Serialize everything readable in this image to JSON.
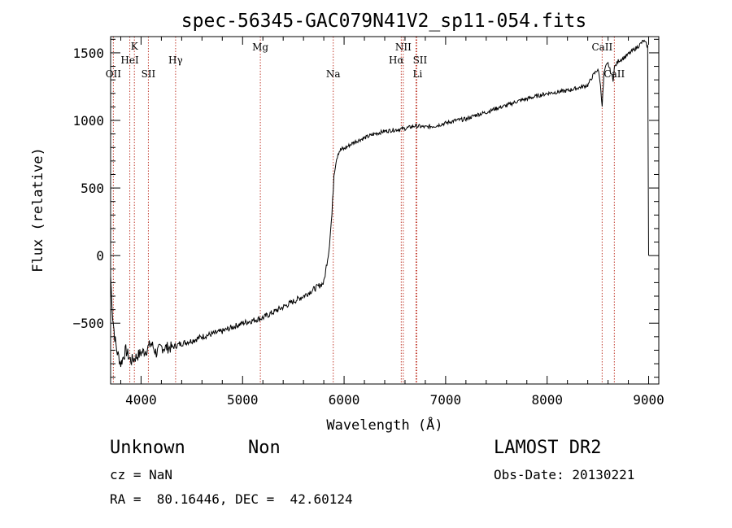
{
  "chart_data": {
    "type": "line",
    "title": "spec-56345-GAC079N41V2_sp11-054.fits",
    "xlabel": "Wavelength (Å)",
    "ylabel": "Flux (relative)",
    "xlim": [
      3700,
      9100
    ],
    "ylim": [
      -950,
      1620
    ],
    "x_ticks": [
      4000,
      5000,
      6000,
      7000,
      8000,
      9000
    ],
    "y_ticks": [
      -500,
      0,
      500,
      1000,
      1500
    ],
    "grid": false,
    "series": [
      {
        "x": [
          3700,
          3720,
          3740,
          3760,
          3780,
          3800,
          3850,
          3900,
          3950,
          4000,
          4050,
          4100,
          4150,
          4200,
          4300,
          4400,
          4500,
          4600,
          4700,
          4800,
          4900,
          5000,
          5100,
          5200,
          5300,
          5400,
          5500,
          5600,
          5700,
          5800,
          5850,
          5880,
          5900,
          5920,
          5940,
          5960,
          6000,
          6100,
          6200,
          6300,
          6400,
          6500,
          6600,
          6700,
          6800,
          6900,
          7000,
          7100,
          7200,
          7300,
          7400,
          7500,
          7600,
          7700,
          7800,
          7900,
          8000,
          8100,
          8200,
          8300,
          8400,
          8450,
          8500,
          8520,
          8542,
          8560,
          8580,
          8600,
          8650,
          8662,
          8700,
          8750,
          8800,
          8850,
          8900,
          8950,
          8970,
          8990,
          9000
        ],
        "y": [
          -150,
          -450,
          -600,
          -700,
          -750,
          -800,
          -700,
          -780,
          -750,
          -720,
          -700,
          -650,
          -720,
          -680,
          -680,
          -650,
          -630,
          -600,
          -580,
          -560,
          -530,
          -500,
          -480,
          -460,
          -420,
          -380,
          -340,
          -300,
          -250,
          -200,
          40,
          300,
          600,
          700,
          760,
          780,
          790,
          840,
          870,
          900,
          920,
          930,
          940,
          960,
          950,
          960,
          980,
          1000,
          1010,
          1040,
          1060,
          1090,
          1110,
          1140,
          1160,
          1180,
          1200,
          1210,
          1220,
          1240,
          1260,
          1330,
          1380,
          1300,
          1110,
          1350,
          1400,
          1420,
          1300,
          1390,
          1440,
          1460,
          1490,
          1520,
          1550,
          1590,
          1570,
          1550,
          0
        ]
      }
    ],
    "line_markers": [
      {
        "label": "OII",
        "x": 3727
      },
      {
        "label": "K",
        "x": 3934
      },
      {
        "label": "HeI",
        "x": 3889
      },
      {
        "label": "SII",
        "x": 4072
      },
      {
        "label": "Hγ",
        "x": 4340
      },
      {
        "label": "Mg",
        "x": 5175
      },
      {
        "label": "Na",
        "x": 5893
      },
      {
        "label": "NII",
        "x": 6583
      },
      {
        "label": "Hα",
        "x": 6563
      },
      {
        "label": "SII",
        "x": 6716
      },
      {
        "label": "Li",
        "x": 6708
      },
      {
        "label": "CaII",
        "x": 8542
      },
      {
        "label": "CaII",
        "x": 8662
      }
    ]
  },
  "info": {
    "class": "Unknown",
    "subclass": "Non",
    "survey": "LAMOST DR2",
    "cz": "cz = NaN",
    "obs_date": "Obs-Date: 20130221",
    "coords": "RA =  80.16446, DEC =  42.60124"
  },
  "colors": {
    "spectrum": "#000000",
    "marker": "#c0392b"
  }
}
